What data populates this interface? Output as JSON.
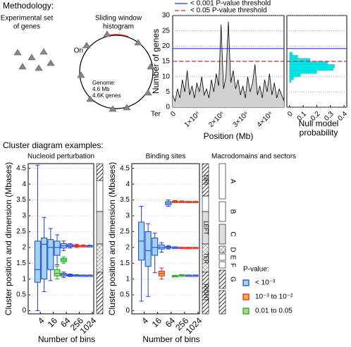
{
  "methodology": {
    "title": "Methodology:",
    "genes_label": [
      "Experimental set",
      "of genes"
    ],
    "window_label": [
      "Sliding window",
      "histogram"
    ],
    "ori": "Ori",
    "ter": "Ter",
    "genome_label": [
      "Genome:",
      "4.6 Mb",
      "4.6K genes"
    ]
  },
  "cluster_section": {
    "title": "Cluster diagram examples:"
  },
  "macrodomains": {
    "title": "Macrodomains and sectors",
    "sectors": [
      "A",
      "B",
      "C",
      "D",
      "E",
      "F",
      "G"
    ],
    "domains": [
      "ORI",
      "LEFT",
      "TER",
      "RIGHT"
    ]
  },
  "pvalue_legend": {
    "title": "P-value:",
    "items": [
      {
        "label": "< 10⁻³",
        "color": "#1f3fd0",
        "fill": "#9fd4f0"
      },
      {
        "label": "10⁻³ to 10⁻²",
        "color": "#e02020",
        "fill": "#f0b040"
      },
      {
        "label": "0.01 to 0.05",
        "color": "#20a020",
        "fill": "#a0e080"
      }
    ]
  },
  "chart_data": [
    {
      "type": "line",
      "xlabel": "Position (Mb)",
      "ylabel": "Number of genes",
      "x": [
        0,
        100000,
        200000,
        300000,
        400000,
        500000,
        600000,
        700000,
        800000,
        900000,
        1000000,
        1100000,
        1200000,
        1300000,
        1400000,
        1500000,
        1600000,
        1700000,
        1800000,
        1900000,
        2000000,
        2100000,
        2200000,
        2300000,
        2400000,
        2500000,
        2600000,
        2700000,
        2800000,
        2900000,
        3000000,
        3100000,
        3200000,
        3300000,
        3400000,
        3500000,
        3600000,
        3700000,
        3800000,
        3900000,
        4000000,
        4100000,
        4200000,
        4300000,
        4400000,
        4500000,
        4600000
      ],
      "values": [
        4,
        2,
        6,
        3,
        9,
        5,
        12,
        4,
        7,
        3,
        8,
        5,
        10,
        4,
        6,
        3,
        9,
        5,
        11,
        7,
        27,
        6,
        10,
        28,
        8,
        12,
        6,
        9,
        4,
        7,
        3,
        10,
        5,
        8,
        14,
        4,
        7,
        3,
        9,
        5,
        11,
        4,
        8,
        3,
        6,
        4,
        2
      ],
      "color": "#000000",
      "fill": "#d0d0d0",
      "xlim": [
        0,
        4600000
      ],
      "xticks": [
        0,
        {
          "value": 1000000,
          "label": "1×10⁶"
        },
        {
          "value": 2000000,
          "label": "2×10⁶"
        },
        {
          "value": 3000000,
          "label": "3×10⁶"
        },
        {
          "value": 4000000,
          "label": "4×10⁶"
        }
      ],
      "ylim": [
        0,
        30
      ],
      "yticks": [
        0,
        5,
        10,
        15,
        20,
        25,
        30
      ],
      "grid": true,
      "thresholds": [
        {
          "name": "< 0.001 P-value threshold",
          "color": "#1f3fd0",
          "value": 19.2,
          "style": "solid"
        },
        {
          "name": "< 0.05 P-value threshold",
          "color": "#e02020",
          "value": 15,
          "style": "dashed"
        }
      ]
    },
    {
      "type": "histogram",
      "orientation": "horizontal",
      "xlabel": [
        "Null model",
        "probability"
      ],
      "bins": [
        8,
        9,
        10,
        11,
        12,
        13,
        14,
        15,
        16,
        17,
        18
      ],
      "values": [
        0.01,
        0.03,
        0.08,
        0.2,
        0.32,
        0.33,
        0.28,
        0.15,
        0.06,
        0.02
      ],
      "color": "#00e5e5",
      "xlim": [
        -0.02,
        0.42
      ],
      "xticks": [
        0,
        0.1,
        0.2,
        0.3,
        0.4
      ],
      "ylim": [
        0,
        30
      ]
    },
    {
      "type": "box",
      "title": "Nucleoid perturbation",
      "xlabel": "Number of bins",
      "ylabel": "Cluster position and dimension (Mbases)",
      "xscale": "log",
      "xlim": [
        2,
        1024
      ],
      "xticks": [
        4,
        16,
        64,
        256,
        1024
      ],
      "ylim": [
        -0.1,
        4.65
      ],
      "yticks": [
        0,
        0.5,
        1,
        1.5,
        2,
        2.5,
        3,
        3.5,
        4,
        4.5
      ],
      "grid": true,
      "boxes": [
        {
          "x": 3,
          "low": 0,
          "q1": 0.9,
          "median": 1.3,
          "q3": 2.2,
          "high": 4.6,
          "color": "#1f3fd0"
        },
        {
          "x": 6,
          "low": 0.6,
          "q1": 1.0,
          "median": 2.1,
          "q3": 2.3,
          "high": 2.95,
          "color": "#1f3fd0"
        },
        {
          "x": 12,
          "low": 0.95,
          "q1": 1.3,
          "median": 2.0,
          "q3": 2.25,
          "high": 2.6,
          "color": "#1f3fd0"
        },
        {
          "x": 24,
          "low": 1.45,
          "q1": 1.75,
          "median": 2.0,
          "q3": 2.2,
          "high": 2.4,
          "color": "#1f3fd0"
        },
        {
          "x": 24,
          "low": 1.0,
          "q1": 1.1,
          "median": 1.18,
          "q3": 1.3,
          "high": 1.4,
          "color": "#20a020"
        },
        {
          "x": 48,
          "low": 1.9,
          "q1": 1.98,
          "median": 2.05,
          "q3": 2.12,
          "high": 2.2,
          "color": "#1f3fd0"
        },
        {
          "x": 48,
          "low": 1.5,
          "q1": 1.55,
          "median": 1.6,
          "q3": 1.65,
          "high": 1.7,
          "color": "#20a020"
        },
        {
          "x": 48,
          "low": 1.05,
          "q1": 1.1,
          "median": 1.14,
          "q3": 1.18,
          "high": 1.22,
          "color": "#1f3fd0"
        },
        {
          "x": 96,
          "low": 1.98,
          "q1": 2.02,
          "median": 2.05,
          "q3": 2.09,
          "high": 2.12,
          "color": "#1f3fd0"
        },
        {
          "x": 96,
          "low": 1.08,
          "q1": 1.1,
          "median": 1.12,
          "q3": 1.14,
          "high": 1.16,
          "color": "#1f3fd0"
        },
        {
          "x": 192,
          "low": 2.0,
          "q1": 2.03,
          "median": 2.05,
          "q3": 2.07,
          "high": 2.1,
          "color": "#e02020"
        },
        {
          "x": 192,
          "low": 1.1,
          "q1": 1.11,
          "median": 1.12,
          "q3": 1.13,
          "high": 1.14,
          "color": "#1f3fd0"
        },
        {
          "x": 384,
          "low": 2.02,
          "q1": 2.04,
          "median": 2.05,
          "q3": 2.06,
          "high": 2.08,
          "color": "#e02020"
        },
        {
          "x": 384,
          "low": 1.11,
          "q1": 1.115,
          "median": 1.12,
          "q3": 1.125,
          "high": 1.13,
          "color": "#1f3fd0"
        },
        {
          "x": 768,
          "low": 2.03,
          "q1": 2.04,
          "median": 2.05,
          "q3": 2.06,
          "high": 2.07,
          "color": "#1f3fd0"
        },
        {
          "x": 768,
          "low": 1.11,
          "q1": 1.115,
          "median": 1.12,
          "q3": 1.125,
          "high": 1.13,
          "color": "#1f3fd0"
        }
      ]
    },
    {
      "type": "box",
      "title": "Binding sites",
      "xlabel": "Number of bins",
      "ylabel": "Cluster position and dimension (Mbases)",
      "xscale": "log",
      "xlim": [
        2,
        1024
      ],
      "xticks": [
        4,
        16,
        64,
        256,
        1024
      ],
      "ylim": [
        -0.1,
        4.65
      ],
      "yticks": [
        0,
        0.5,
        1,
        1.5,
        2,
        2.5,
        3,
        3.5,
        4,
        4.5
      ],
      "grid": true,
      "boxes": [
        {
          "x": 3,
          "low": 0.3,
          "q1": 1.6,
          "median": 2.2,
          "q3": 2.8,
          "high": 3.3,
          "color": "#1f3fd0"
        },
        {
          "x": 6,
          "low": 0.45,
          "q1": 1.4,
          "median": 1.9,
          "q3": 2.5,
          "high": 2.75,
          "color": "#1f3fd0"
        },
        {
          "x": 12,
          "low": 1.2,
          "q1": 1.75,
          "median": 2.0,
          "q3": 2.3,
          "high": 2.45,
          "color": "#1f3fd0"
        },
        {
          "x": 24,
          "low": 1.85,
          "q1": 1.95,
          "median": 2.0,
          "q3": 2.08,
          "high": 2.15,
          "color": "#1f3fd0"
        },
        {
          "x": 24,
          "low": 1.0,
          "q1": 1.1,
          "median": 1.18,
          "q3": 1.25,
          "high": 1.35,
          "color": "#e02020"
        },
        {
          "x": 48,
          "low": 3.3,
          "q1": 3.35,
          "median": 3.4,
          "q3": 3.45,
          "high": 3.5,
          "color": "#1f3fd0"
        },
        {
          "x": 48,
          "low": 1.95,
          "q1": 1.98,
          "median": 2.0,
          "q3": 2.03,
          "high": 2.06,
          "color": "#1f3fd0"
        },
        {
          "x": 96,
          "low": 3.42,
          "q1": 3.44,
          "median": 3.45,
          "q3": 3.46,
          "high": 3.48,
          "color": "#e02020"
        },
        {
          "x": 96,
          "low": 1.98,
          "q1": 1.99,
          "median": 2.0,
          "q3": 2.01,
          "high": 2.02,
          "color": "#1f3fd0"
        },
        {
          "x": 96,
          "low": 1.08,
          "q1": 1.09,
          "median": 1.1,
          "q3": 1.11,
          "high": 1.12,
          "color": "#20a020"
        },
        {
          "x": 192,
          "low": 3.43,
          "q1": 3.44,
          "median": 3.45,
          "q3": 3.46,
          "high": 3.47,
          "color": "#e02020"
        },
        {
          "x": 192,
          "low": 1.99,
          "q1": 1.995,
          "median": 2.0,
          "q3": 2.005,
          "high": 2.01,
          "color": "#e02020"
        },
        {
          "x": 192,
          "low": 1.1,
          "q1": 1.11,
          "median": 1.12,
          "q3": 1.13,
          "high": 1.14,
          "color": "#20a020"
        },
        {
          "x": 384,
          "low": 3.44,
          "q1": 3.445,
          "median": 3.45,
          "q3": 3.455,
          "high": 3.46,
          "color": "#e02020"
        },
        {
          "x": 384,
          "low": 1.995,
          "q1": 1.998,
          "median": 2.0,
          "q3": 2.002,
          "high": 2.005,
          "color": "#e02020"
        },
        {
          "x": 384,
          "low": 1.11,
          "q1": 1.115,
          "median": 1.12,
          "q3": 1.125,
          "high": 1.13,
          "color": "#1f3fd0"
        },
        {
          "x": 768,
          "low": 3.44,
          "q1": 3.445,
          "median": 3.45,
          "q3": 3.455,
          "high": 3.46,
          "color": "#e02020"
        },
        {
          "x": 768,
          "low": 1.995,
          "q1": 1.998,
          "median": 2.0,
          "q3": 2.002,
          "high": 2.005,
          "color": "#e02020"
        },
        {
          "x": 768,
          "low": 1.11,
          "q1": 1.115,
          "median": 1.12,
          "q3": 1.125,
          "high": 1.13,
          "color": "#1f3fd0"
        }
      ]
    }
  ]
}
